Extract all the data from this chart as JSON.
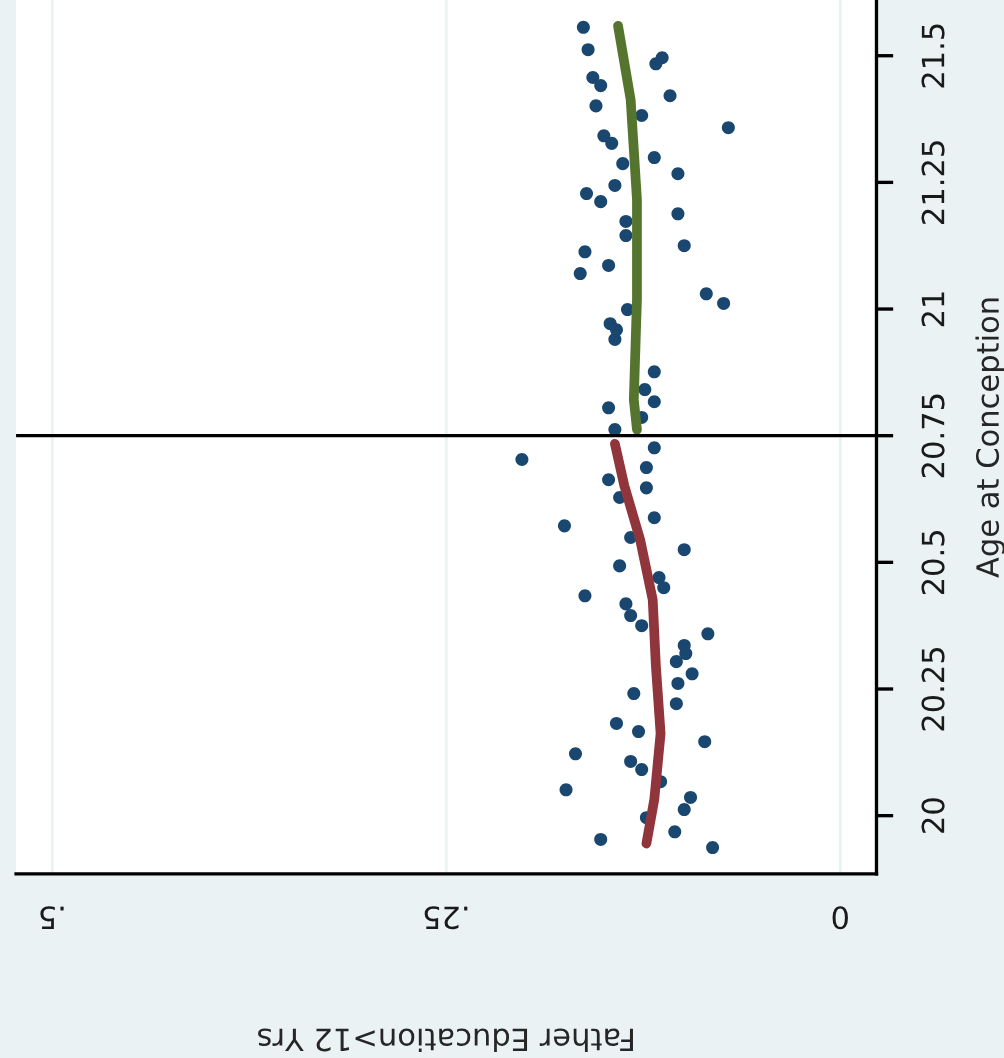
{
  "chart_data": {
    "type": "scatter",
    "xlabel": "Father Education>12 Yrs",
    "ylabel": "Age at Conception",
    "xlim": [
      0.523,
      -0.023
    ],
    "ylim": [
      19.885,
      21.61
    ],
    "xticks": [
      {
        "value": 0.5,
        "label": ".5"
      },
      {
        "value": 0.25,
        "label": ".25"
      },
      0
    ],
    "yticks": [
      20,
      20.25,
      20.5,
      20.75,
      21,
      21.25,
      21.5
    ],
    "grid": "x",
    "marker": "circle",
    "ref_lines": [
      {
        "axis": "y",
        "value": 20.75,
        "color": "#000000"
      }
    ],
    "series": [
      {
        "color": "#1a476f",
        "x": [
          0.163,
          0.16,
          0.117,
          0.113,
          0.157,
          0.152,
          0.108,
          0.155,
          0.126,
          0.071,
          0.15,
          0.145,
          0.118,
          0.138,
          0.103,
          0.143,
          0.161,
          0.152,
          0.103,
          0.136,
          0.136,
          0.099,
          0.162,
          0.165,
          0.147,
          0.085,
          0.074,
          0.135,
          0.146,
          0.142,
          0.143,
          0.118,
          0.124,
          0.118,
          0.147,
          0.126,
          0.143,
          0.202,
          0.118,
          0.123,
          0.147,
          0.123,
          0.14,
          0.175,
          0.118,
          0.133,
          0.099,
          0.14,
          0.115,
          0.112,
          0.162,
          0.136,
          0.133,
          0.126,
          0.084,
          0.099,
          0.098,
          0.104,
          0.094,
          0.103,
          0.131,
          0.104,
          0.142,
          0.128,
          0.086,
          0.168,
          0.133,
          0.126,
          0.174,
          0.114,
          0.095,
          0.099,
          0.123,
          0.152,
          0.105,
          0.081
        ],
        "values": [
          21.556,
          21.512,
          21.484,
          21.496,
          21.457,
          21.441,
          21.421,
          21.401,
          21.382,
          21.358,
          21.342,
          21.327,
          21.299,
          21.287,
          21.267,
          21.244,
          21.228,
          21.212,
          21.188,
          21.173,
          21.145,
          21.125,
          21.113,
          21.07,
          21.086,
          21.03,
          21.011,
          20.999,
          20.971,
          20.959,
          20.94,
          20.876,
          20.841,
          20.817,
          20.805,
          20.786,
          20.762,
          20.703,
          20.726,
          20.687,
          20.663,
          20.647,
          20.628,
          20.572,
          20.588,
          20.549,
          20.525,
          20.493,
          20.47,
          20.45,
          20.434,
          20.418,
          20.395,
          20.375,
          20.359,
          20.336,
          20.32,
          20.304,
          20.28,
          20.261,
          20.241,
          20.221,
          20.182,
          20.166,
          20.146,
          20.122,
          20.107,
          20.091,
          20.051,
          20.067,
          20.036,
          20.012,
          19.996,
          19.953,
          19.968,
          19.937
        ]
      },
      {
        "type": "line",
        "color": "#90353b",
        "marker": "none",
        "x": [
          0.143,
          0.137,
          0.127,
          0.119,
          0.117,
          0.114,
          0.118,
          0.123
        ],
        "values": [
          20.734,
          20.651,
          20.545,
          20.426,
          20.296,
          20.162,
          20.032,
          19.945
        ]
      },
      {
        "type": "line",
        "color": "#55752f",
        "marker": "none",
        "x": [
          0.141,
          0.133,
          0.129,
          0.129,
          0.131,
          0.129
        ],
        "values": [
          21.559,
          21.413,
          21.216,
          21.019,
          20.821,
          20.762
        ]
      }
    ]
  }
}
